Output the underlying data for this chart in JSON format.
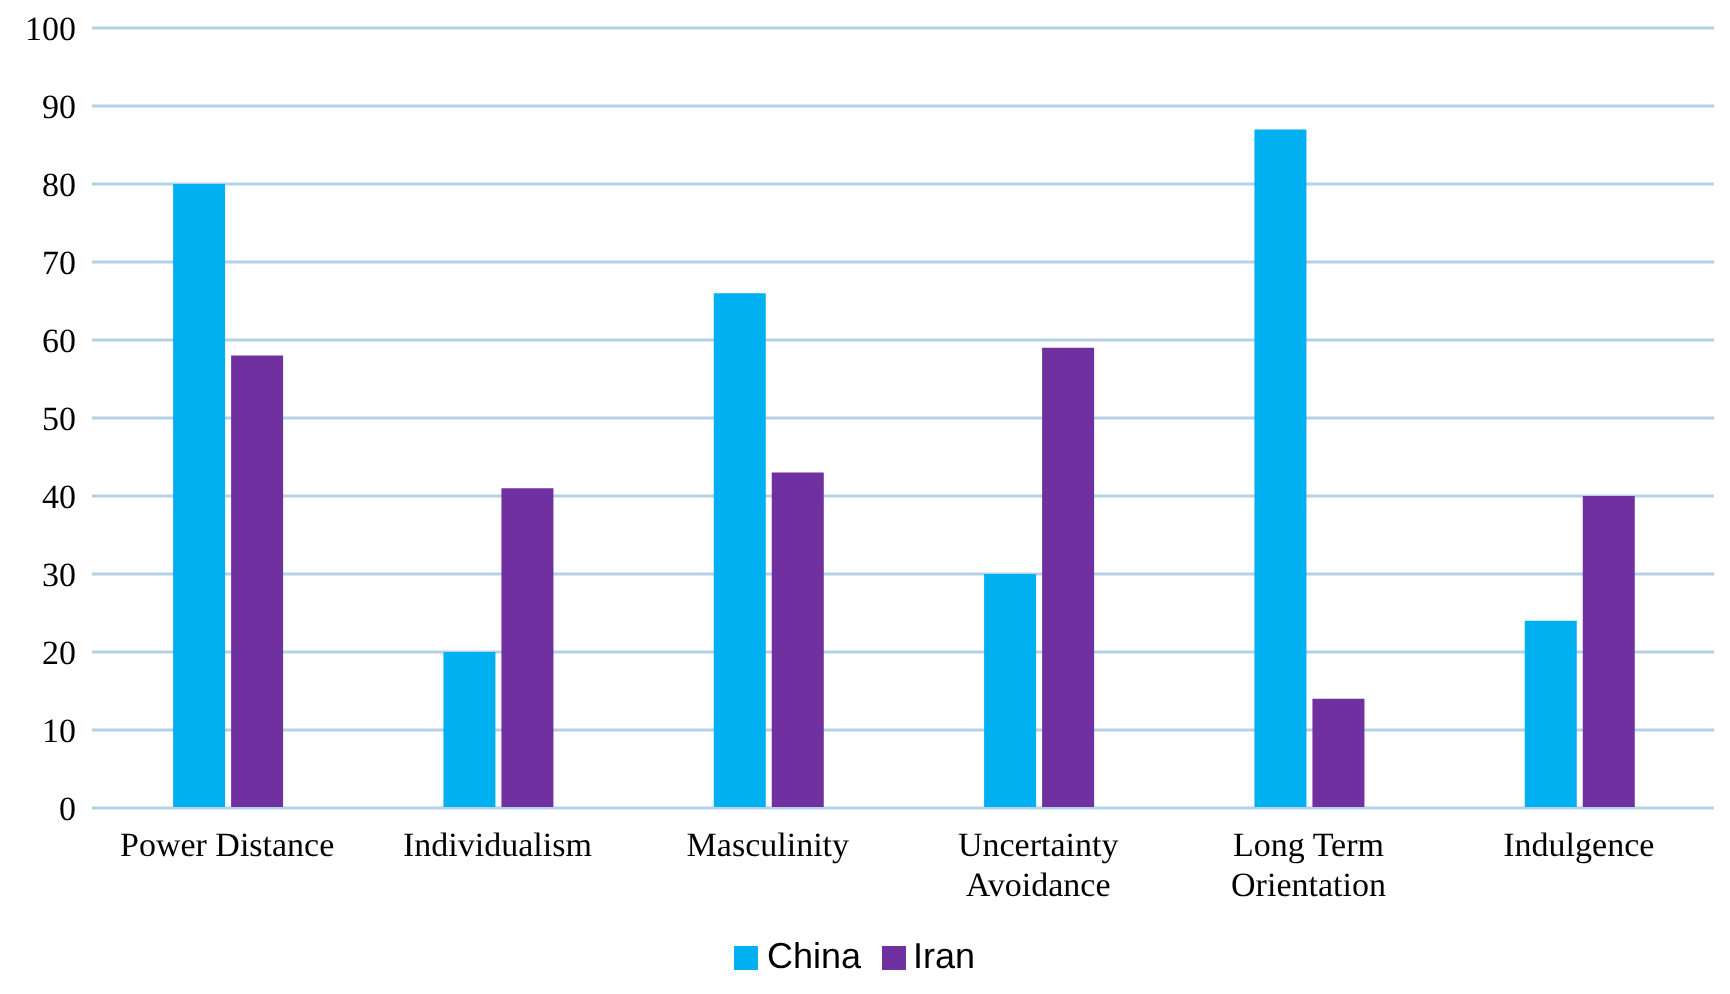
{
  "chart_data": {
    "type": "bar",
    "categories": [
      "Power Distance",
      "Individualism",
      "Masculinity",
      "Uncertainty Avoidance",
      "Long Term Orientation",
      "Indulgence"
    ],
    "series": [
      {
        "name": "China",
        "color": "#00b0f0",
        "values": [
          80,
          20,
          66,
          30,
          87,
          24
        ]
      },
      {
        "name": "Iran",
        "color": "#7030a0",
        "values": [
          58,
          41,
          43,
          59,
          14,
          40
        ]
      }
    ],
    "ylim": [
      0,
      100
    ],
    "yticks": [
      0,
      10,
      20,
      30,
      40,
      50,
      60,
      70,
      80,
      90,
      100
    ],
    "grid": "y",
    "legend": "bottom"
  }
}
